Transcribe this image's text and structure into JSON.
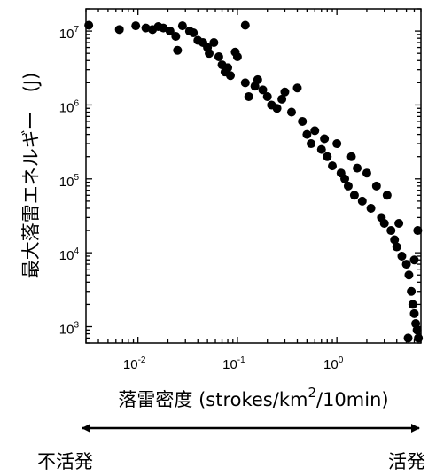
{
  "chart_data": {
    "type": "scatter",
    "xscale": "log",
    "yscale": "log",
    "xlim": [
      0.003,
      7
    ],
    "ylim": [
      600,
      20000000
    ],
    "x_ticks": [
      {
        "base": "10",
        "exp": "-2",
        "value": 0.01
      },
      {
        "base": "10",
        "exp": "-1",
        "value": 0.1
      },
      {
        "base": "10",
        "exp": "0",
        "value": 1
      }
    ],
    "y_ticks": [
      {
        "base": "10",
        "exp": "3",
        "value": 1000
      },
      {
        "base": "10",
        "exp": "4",
        "value": 10000
      },
      {
        "base": "10",
        "exp": "5",
        "value": 100000
      },
      {
        "base": "10",
        "exp": "6",
        "value": 1000000
      },
      {
        "base": "10",
        "exp": "7",
        "value": 10000000
      }
    ],
    "xlabel_pre": "落雷密度 (strokes/km",
    "xlabel_sup": "2",
    "xlabel_post": "/10min)",
    "ylabel": "最大落雷エネルギー　(J)",
    "grid": false,
    "legend": "none",
    "marker_color": "#000000",
    "arrow_left_label": "不活発",
    "arrow_right_label": "活発",
    "points": [
      [
        0.0032,
        12000000
      ],
      [
        0.0065,
        10500000
      ],
      [
        0.0095,
        11800000
      ],
      [
        0.012,
        11000000
      ],
      [
        0.014,
        10500000
      ],
      [
        0.016,
        11500000
      ],
      [
        0.018,
        11000000
      ],
      [
        0.021,
        10000000
      ],
      [
        0.024,
        8500000
      ],
      [
        0.025,
        5500000
      ],
      [
        0.028,
        11800000
      ],
      [
        0.033,
        10000000
      ],
      [
        0.036,
        9500000
      ],
      [
        0.04,
        7500000
      ],
      [
        0.045,
        7000000
      ],
      [
        0.05,
        6000000
      ],
      [
        0.052,
        5000000
      ],
      [
        0.058,
        7000000
      ],
      [
        0.065,
        4500000
      ],
      [
        0.07,
        3500000
      ],
      [
        0.075,
        2800000
      ],
      [
        0.08,
        3200000
      ],
      [
        0.085,
        2500000
      ],
      [
        0.095,
        5200000
      ],
      [
        0.1,
        4500000
      ],
      [
        0.12,
        12000000
      ],
      [
        0.12,
        2000000
      ],
      [
        0.13,
        1300000
      ],
      [
        0.15,
        1800000
      ],
      [
        0.16,
        2200000
      ],
      [
        0.18,
        1600000
      ],
      [
        0.2,
        1300000
      ],
      [
        0.22,
        1000000
      ],
      [
        0.25,
        900000
      ],
      [
        0.28,
        1200000
      ],
      [
        0.3,
        1500000
      ],
      [
        0.35,
        800000
      ],
      [
        0.4,
        1700000
      ],
      [
        0.45,
        600000
      ],
      [
        0.5,
        400000
      ],
      [
        0.55,
        300000
      ],
      [
        0.6,
        450000
      ],
      [
        0.7,
        250000
      ],
      [
        0.75,
        350000
      ],
      [
        0.8,
        200000
      ],
      [
        0.9,
        150000
      ],
      [
        1.0,
        300000
      ],
      [
        1.1,
        120000
      ],
      [
        1.2,
        100000
      ],
      [
        1.3,
        80000
      ],
      [
        1.4,
        200000
      ],
      [
        1.5,
        60000
      ],
      [
        1.6,
        140000
      ],
      [
        1.8,
        50000
      ],
      [
        2.0,
        120000
      ],
      [
        2.2,
        40000
      ],
      [
        2.5,
        80000
      ],
      [
        2.8,
        30000
      ],
      [
        3.0,
        25000
      ],
      [
        3.2,
        60000
      ],
      [
        3.5,
        20000
      ],
      [
        3.8,
        15000
      ],
      [
        4.0,
        12000
      ],
      [
        4.2,
        25000
      ],
      [
        4.5,
        9000
      ],
      [
        5.0,
        7000
      ],
      [
        5.3,
        5000
      ],
      [
        5.6,
        3000
      ],
      [
        5.8,
        2000
      ],
      [
        6.0,
        1500
      ],
      [
        6.2,
        1100
      ],
      [
        6.4,
        900
      ],
      [
        5.2,
        700
      ],
      [
        6.6,
        700
      ],
      [
        6.0,
        8000
      ],
      [
        6.5,
        20000
      ]
    ]
  }
}
